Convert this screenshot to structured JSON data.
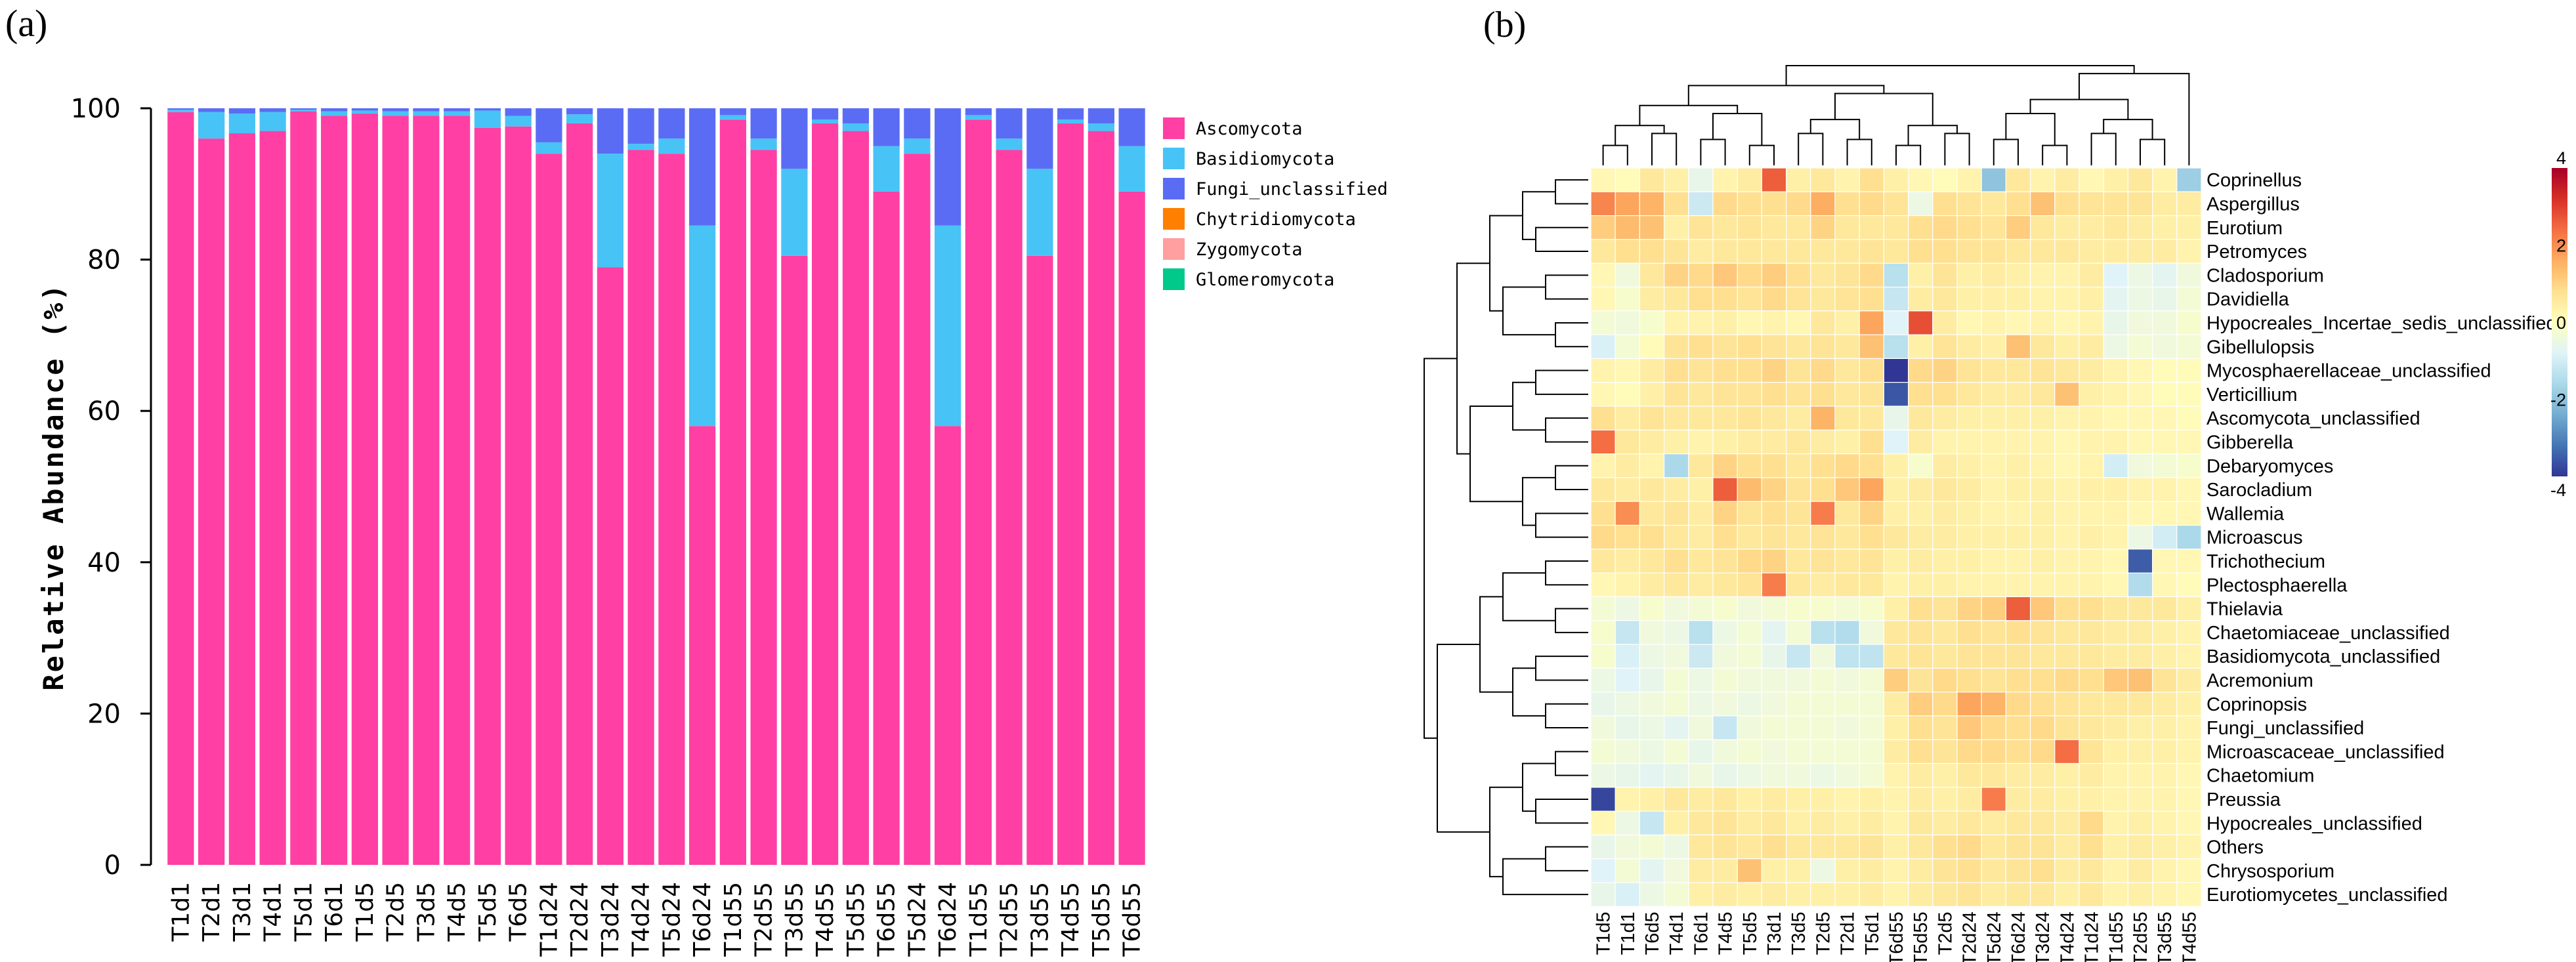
{
  "panel_a_label": "(a)",
  "panel_b_label": "(b)",
  "chart_data": [
    {
      "type": "bar",
      "stacked": true,
      "panel": "a",
      "ylabel": "Relative Abundance (%)",
      "xlabel": "",
      "ylim": [
        0,
        100
      ],
      "yticks": [
        0,
        20,
        40,
        60,
        80,
        100
      ],
      "legend_position": "right",
      "categories": [
        "T1d1",
        "T2d1",
        "T3d1",
        "T4d1",
        "T5d1",
        "T6d1",
        "T1d5",
        "T2d5",
        "T3d5",
        "T4d5",
        "T5d5",
        "T6d5",
        "T1d24",
        "T2d24",
        "T3d24",
        "T4d24",
        "T5d24",
        "T6d24",
        "T1d55",
        "T2d55",
        "T3d55",
        "T4d55",
        "T5d55",
        "T6d55",
        "T5d24",
        "T6d24",
        "T1d55",
        "T2d55",
        "T3d55",
        "T4d55",
        "T5d55",
        "T6d55"
      ],
      "series": [
        {
          "name": "Ascomycota",
          "color": "#ff3fa3",
          "values": [
            99.5,
            96,
            96.7,
            97,
            99.6,
            99,
            99.3,
            99,
            99,
            99,
            97.4,
            97.6,
            94,
            98,
            79,
            94.5,
            94,
            58,
            98.5,
            94.5,
            80.5,
            98,
            97,
            89,
            94,
            58,
            98.5,
            94.5,
            80.5,
            98,
            97,
            89
          ]
        },
        {
          "name": "Basidiomycota",
          "color": "#48c3f6",
          "values": [
            0.3,
            3.5,
            2.6,
            2.5,
            0.2,
            0.6,
            0.4,
            0.6,
            0.6,
            0.6,
            2.3,
            1.4,
            1.5,
            1.2,
            15,
            0.8,
            2,
            26.5,
            0.6,
            1.5,
            11.5,
            0.5,
            1,
            6,
            2,
            26.5,
            0.6,
            1.5,
            11.5,
            0.5,
            1,
            6
          ]
        },
        {
          "name": "Fungi_unclassified",
          "color": "#5b6cf4",
          "values": [
            0.2,
            0.5,
            0.7,
            0.5,
            0.2,
            0.4,
            0.3,
            0.4,
            0.4,
            0.4,
            0.3,
            1,
            4.5,
            0.8,
            6,
            4.7,
            4,
            15.5,
            0.9,
            4,
            8,
            1.5,
            2,
            5,
            4,
            15.5,
            0.9,
            4,
            8,
            1.5,
            2,
            5
          ]
        },
        {
          "name": "Chytridiomycota",
          "color": "#ff7f00",
          "values": [
            0,
            0,
            0,
            0,
            0,
            0,
            0,
            0,
            0,
            0,
            0,
            0,
            0,
            0,
            0,
            0,
            0,
            0,
            0,
            0,
            0,
            0,
            0,
            0,
            0,
            0,
            0,
            0,
            0,
            0,
            0,
            0
          ]
        },
        {
          "name": "Zygomycota",
          "color": "#ff9f9f",
          "values": [
            0,
            0,
            0,
            0,
            0,
            0,
            0,
            0,
            0,
            0,
            0,
            0,
            0,
            0,
            0,
            0,
            0,
            0,
            0,
            0,
            0,
            0,
            0,
            0,
            0,
            0,
            0,
            0,
            0,
            0,
            0,
            0
          ]
        },
        {
          "name": "Glomeromycota",
          "color": "#00c98a",
          "values": [
            0,
            0,
            0,
            0,
            0,
            0,
            0,
            0,
            0,
            0,
            0,
            0,
            0,
            0,
            0,
            0,
            0,
            0,
            0,
            0,
            0,
            0,
            0,
            0,
            0,
            0,
            0,
            0,
            0,
            0,
            0,
            0
          ]
        }
      ]
    },
    {
      "type": "heatmap",
      "panel": "b",
      "title": "",
      "x": [
        "T1d5",
        "T1d1",
        "T6d5",
        "T4d1",
        "T6d1",
        "T4d5",
        "T5d5",
        "T3d1",
        "T3d5",
        "T2d5",
        "T2d1",
        "T5d1",
        "T6d55",
        "T5d55",
        "T2d5",
        "T2d24",
        "T5d24",
        "T6d24",
        "T3d24",
        "T4d24",
        "T1d24",
        "T1d55",
        "T2d55",
        "T3d55",
        "T4d55"
      ],
      "y": [
        "Coprinellus",
        "Aspergillus",
        "Eurotium",
        "Petromyces",
        "Cladosporium",
        "Davidiella",
        "Hypocreales_Incertae_sedis_unclassified",
        "Gibellulopsis",
        "Mycosphaerellaceae_unclassified",
        "Verticillium",
        "Ascomycota_unclassified",
        "Gibberella",
        "Debaryomyces",
        "Sarocladium",
        "Wallemia",
        "Microascus",
        "Trichothecium",
        "Plectosphaerella",
        "Thielavia",
        "Chaetomiaceae_unclassified",
        "Basidiomycota_unclassified",
        "Acremonium",
        "Coprinopsis",
        "Fungi_unclassified",
        "Microascaceae_unclassified",
        "Chaetomium",
        "Preussia",
        "Hypocreales_unclassified",
        "Others",
        "Chrysosporium",
        "Eurotiomycetes_unclassified"
      ],
      "colorscale": {
        "min": -4,
        "max": 4,
        "ticks": [
          4,
          2,
          0,
          -2,
          -4
        ],
        "colors": [
          "#313695",
          "#4575b4",
          "#74add1",
          "#abd9e9",
          "#e0f3f8",
          "#ffffbf",
          "#fee090",
          "#fdae61",
          "#f46d43",
          "#d73027",
          "#a50026"
        ]
      },
      "values": [
        [
          0.2,
          0.1,
          0.6,
          0.4,
          -0.6,
          0.3,
          0.5,
          2.6,
          0.4,
          0.6,
          0.3,
          0.8,
          0.4,
          0.2,
          0.1,
          0.3,
          -2.0,
          0.6,
          0.3,
          0.5,
          0.2,
          0.4,
          0.6,
          0.3,
          -1.8
        ],
        [
          2.1,
          1.7,
          1.5,
          0.8,
          -1.1,
          0.9,
          0.8,
          0.8,
          0.9,
          1.6,
          0.8,
          0.9,
          0.7,
          -0.5,
          0.8,
          0.7,
          0.6,
          0.8,
          1.3,
          0.8,
          0.7,
          0.7,
          0.7,
          0.5,
          0.5
        ],
        [
          1.1,
          1.4,
          1.3,
          0.4,
          0.7,
          0.6,
          0.7,
          0.6,
          0.6,
          1.0,
          0.6,
          0.6,
          0.6,
          0.8,
          0.9,
          0.8,
          0.7,
          1.1,
          0.6,
          0.5,
          0.5,
          0.6,
          0.5,
          0.4,
          0.4
        ],
        [
          0.6,
          0.8,
          0.8,
          0.7,
          0.5,
          0.6,
          0.6,
          0.6,
          0.6,
          0.6,
          0.6,
          0.7,
          0.6,
          0.8,
          0.8,
          0.7,
          0.7,
          0.6,
          0.6,
          0.6,
          0.5,
          0.5,
          0.5,
          0.5,
          0.3
        ],
        [
          0.2,
          -0.4,
          0.6,
          1.0,
          0.9,
          1.2,
          0.9,
          1.1,
          0.8,
          0.6,
          0.7,
          0.9,
          -1.4,
          0.4,
          0.7,
          0.4,
          0.5,
          0.4,
          0.3,
          0.3,
          0.5,
          -0.8,
          -0.5,
          -0.7,
          -0.4
        ],
        [
          0.2,
          -0.2,
          0.5,
          0.6,
          0.8,
          0.8,
          0.7,
          0.9,
          0.7,
          0.6,
          0.7,
          0.8,
          -1.2,
          0.5,
          0.6,
          0.4,
          0.4,
          0.4,
          0.3,
          0.3,
          0.4,
          -0.7,
          -0.5,
          -0.6,
          -0.3
        ],
        [
          -0.3,
          -0.4,
          -0.2,
          0.3,
          0.3,
          0.4,
          0.2,
          0.3,
          0.2,
          0.6,
          0.4,
          1.7,
          -0.8,
          2.8,
          0.5,
          0.2,
          0.3,
          0.2,
          0.3,
          0.2,
          0.3,
          -0.6,
          -0.4,
          -0.4,
          -0.2
        ],
        [
          -0.9,
          -0.3,
          0.1,
          0.7,
          0.8,
          0.7,
          0.8,
          0.7,
          0.6,
          0.7,
          0.6,
          1.3,
          -1.4,
          0.4,
          0.7,
          0.5,
          0.4,
          1.3,
          0.6,
          0.4,
          0.5,
          -0.5,
          -0.3,
          -0.4,
          -0.3
        ],
        [
          0.3,
          0.2,
          0.5,
          0.8,
          0.7,
          0.8,
          0.8,
          1.0,
          0.7,
          0.9,
          0.6,
          0.8,
          -4.0,
          0.9,
          1.0,
          0.7,
          0.6,
          0.6,
          0.7,
          0.6,
          0.5,
          0.3,
          0.2,
          0.1,
          0.1
        ],
        [
          0.2,
          0.1,
          0.4,
          0.7,
          0.6,
          0.7,
          0.7,
          0.8,
          0.7,
          0.8,
          0.6,
          0.7,
          -3.6,
          0.8,
          0.8,
          0.6,
          0.5,
          0.5,
          0.6,
          1.3,
          0.4,
          0.3,
          0.2,
          0.1,
          0.1
        ],
        [
          0.8,
          0.5,
          0.7,
          0.6,
          0.6,
          0.6,
          0.7,
          0.6,
          0.5,
          1.5,
          0.6,
          0.6,
          -0.6,
          0.6,
          0.5,
          0.4,
          0.4,
          0.4,
          0.4,
          0.3,
          0.3,
          0.2,
          0.2,
          0.2,
          0.1
        ],
        [
          2.4,
          0.6,
          0.5,
          0.4,
          0.3,
          0.4,
          0.5,
          0.5,
          0.6,
          0.5,
          0.4,
          0.8,
          -0.8,
          0.5,
          0.3,
          0.3,
          0.3,
          0.3,
          0.3,
          0.2,
          0.3,
          0.3,
          0.2,
          0.2,
          0.2
        ],
        [
          0.3,
          0.5,
          0.3,
          -1.6,
          0.6,
          1.0,
          0.8,
          0.8,
          0.6,
          0.8,
          0.9,
          0.8,
          0.4,
          -0.2,
          0.5,
          0.4,
          0.3,
          0.4,
          0.3,
          0.2,
          0.3,
          -1.0,
          -0.4,
          -0.3,
          -0.2
        ],
        [
          0.6,
          0.5,
          0.6,
          0.5,
          0.4,
          2.6,
          1.4,
          1.0,
          0.7,
          0.8,
          1.2,
          1.7,
          0.4,
          0.5,
          0.6,
          0.5,
          0.3,
          0.4,
          0.4,
          0.3,
          0.4,
          0.4,
          0.3,
          0.3,
          0.2
        ],
        [
          0.8,
          2.0,
          0.6,
          0.7,
          0.5,
          1.0,
          0.7,
          0.8,
          0.7,
          2.2,
          0.6,
          1.0,
          0.4,
          0.4,
          0.5,
          0.4,
          0.3,
          0.3,
          0.4,
          0.3,
          0.3,
          0.3,
          0.2,
          0.2,
          0.2
        ],
        [
          0.9,
          0.8,
          0.8,
          0.6,
          0.5,
          0.8,
          0.6,
          0.7,
          0.6,
          0.7,
          0.6,
          0.8,
          0.6,
          0.5,
          0.5,
          0.4,
          0.4,
          0.4,
          0.4,
          0.3,
          0.4,
          0.3,
          -0.5,
          -1.0,
          -1.6
        ],
        [
          0.6,
          0.5,
          0.6,
          0.8,
          0.6,
          0.7,
          0.9,
          1.0,
          0.6,
          0.7,
          0.6,
          0.7,
          0.4,
          0.5,
          0.4,
          0.4,
          0.3,
          0.3,
          0.4,
          0.3,
          0.3,
          0.2,
          -3.5,
          0.2,
          0.2
        ],
        [
          0.2,
          0.3,
          0.5,
          0.6,
          0.5,
          0.6,
          0.7,
          2.2,
          0.6,
          0.5,
          0.6,
          0.6,
          0.3,
          0.4,
          0.4,
          0.3,
          0.3,
          0.3,
          0.3,
          0.3,
          0.3,
          0.2,
          -1.5,
          0.2,
          0.1
        ],
        [
          -0.3,
          -0.5,
          -0.2,
          -0.4,
          -0.3,
          -0.2,
          -0.4,
          -0.3,
          -0.2,
          -0.2,
          -0.3,
          -0.2,
          0.4,
          0.8,
          0.7,
          1.0,
          1.1,
          2.6,
          1.2,
          0.8,
          0.8,
          0.6,
          0.6,
          0.6,
          0.4
        ],
        [
          -0.2,
          -1.2,
          -0.4,
          -0.5,
          -1.4,
          -0.5,
          -0.3,
          -0.7,
          -0.3,
          -1.4,
          -1.5,
          -0.4,
          0.6,
          0.7,
          0.6,
          0.8,
          0.7,
          0.8,
          0.7,
          0.6,
          0.6,
          0.5,
          0.5,
          0.4,
          0.3
        ],
        [
          -0.2,
          -0.9,
          -0.5,
          -0.4,
          -1.1,
          -0.4,
          -0.3,
          -0.6,
          -1.2,
          -0.4,
          -1.3,
          -1.3,
          0.6,
          0.7,
          0.6,
          0.7,
          0.7,
          0.7,
          0.6,
          0.6,
          0.6,
          0.5,
          0.5,
          0.4,
          0.3
        ],
        [
          -0.5,
          -0.8,
          -0.6,
          -0.3,
          -0.5,
          -0.3,
          -0.4,
          -0.4,
          -0.4,
          -0.3,
          -0.4,
          -0.3,
          1.1,
          0.7,
          0.9,
          0.8,
          0.7,
          0.8,
          0.8,
          0.9,
          0.8,
          1.2,
          1.3,
          0.7,
          0.5
        ],
        [
          -0.6,
          -0.5,
          -0.4,
          -0.3,
          -0.5,
          -0.4,
          -0.5,
          -0.4,
          -0.3,
          -0.3,
          -0.3,
          -0.3,
          0.5,
          1.1,
          0.9,
          1.7,
          1.5,
          0.9,
          0.8,
          0.7,
          0.6,
          0.6,
          0.6,
          0.5,
          0.4
        ],
        [
          -0.4,
          -0.6,
          -0.5,
          -0.7,
          -0.4,
          -1.2,
          -0.4,
          -0.3,
          -0.3,
          -0.3,
          -0.4,
          -0.3,
          0.4,
          0.8,
          0.7,
          1.2,
          0.9,
          0.8,
          0.9,
          0.7,
          0.6,
          0.5,
          0.4,
          0.4,
          0.3
        ],
        [
          -0.3,
          -0.4,
          -0.5,
          -0.3,
          -0.6,
          -0.4,
          -0.3,
          -0.4,
          -0.3,
          -0.3,
          -0.3,
          -0.3,
          0.5,
          0.8,
          0.7,
          0.9,
          0.9,
          0.8,
          0.9,
          2.4,
          0.7,
          0.4,
          0.4,
          0.4,
          0.3
        ],
        [
          -0.5,
          -0.6,
          -0.7,
          -0.6,
          -0.4,
          -0.6,
          -0.5,
          -0.4,
          -0.4,
          -0.5,
          -0.4,
          -0.3,
          0.3,
          0.5,
          0.4,
          0.6,
          0.6,
          0.5,
          0.5,
          0.4,
          0.5,
          0.3,
          0.3,
          0.3,
          0.2
        ],
        [
          -3.8,
          0.3,
          0.4,
          0.6,
          0.5,
          0.6,
          0.4,
          0.5,
          0.4,
          0.4,
          0.3,
          0.4,
          0.3,
          0.5,
          0.4,
          0.5,
          2.2,
          0.5,
          0.5,
          0.4,
          0.4,
          0.3,
          0.3,
          0.3,
          0.2
        ],
        [
          0.2,
          -0.5,
          -1.2,
          0.4,
          0.6,
          0.7,
          0.5,
          0.6,
          0.4,
          0.5,
          0.4,
          0.5,
          0.3,
          0.6,
          0.5,
          0.6,
          0.5,
          0.6,
          0.6,
          0.5,
          0.9,
          0.3,
          0.4,
          0.3,
          0.2
        ],
        [
          -0.6,
          -0.4,
          -0.3,
          -0.5,
          0.6,
          0.7,
          0.6,
          0.8,
          0.6,
          0.6,
          0.6,
          0.7,
          0.4,
          0.6,
          0.8,
          0.9,
          0.6,
          0.7,
          0.7,
          0.5,
          0.8,
          0.4,
          0.5,
          0.4,
          0.3
        ],
        [
          -0.8,
          -0.3,
          -0.7,
          -0.4,
          0.5,
          0.5,
          1.3,
          0.4,
          0.4,
          -0.5,
          0.4,
          0.5,
          0.3,
          0.5,
          0.7,
          0.8,
          0.6,
          0.7,
          0.8,
          0.5,
          0.6,
          0.3,
          0.5,
          0.3,
          0.2
        ],
        [
          -0.6,
          -0.9,
          -0.5,
          -0.3,
          0.4,
          0.5,
          0.4,
          0.5,
          0.4,
          0.4,
          0.4,
          0.5,
          0.3,
          0.5,
          0.6,
          0.7,
          0.5,
          0.6,
          0.6,
          0.4,
          0.6,
          0.3,
          0.4,
          0.3,
          0.2
        ]
      ]
    }
  ]
}
